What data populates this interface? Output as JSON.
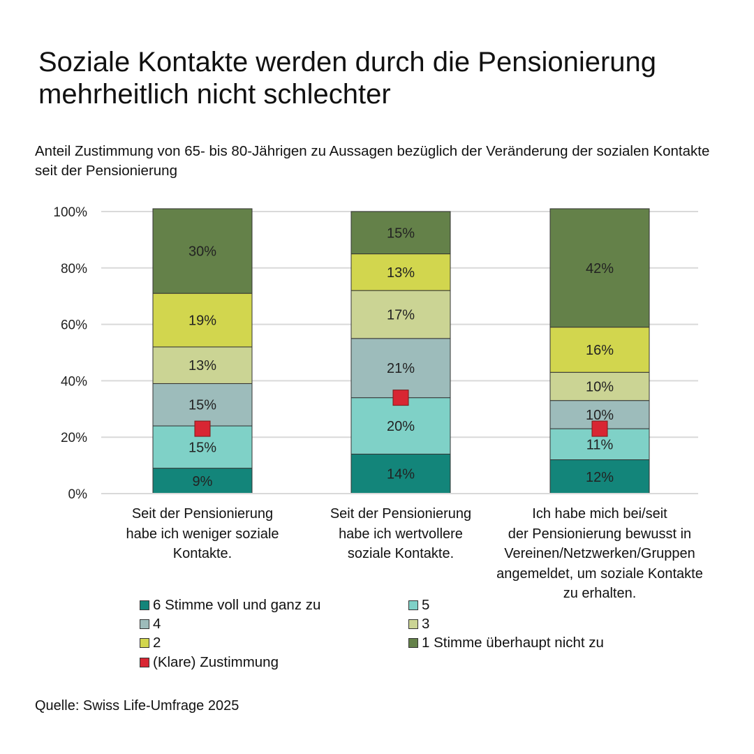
{
  "title": "Soziale Kontakte werden durch die Pensionierung mehrheitlich nicht schlechter",
  "subtitle": "Anteil Zustimmung von 65- bis 80-Jährigen zu Aussagen bezüglich der Veränderung der sozialen Kontakte seit der Pensionierung",
  "source": "Quelle: Swiss Life-Umfrage 2025",
  "chart_data": {
    "type": "bar",
    "stacked": true,
    "ylim": [
      0,
      100
    ],
    "yticks": [
      "0%",
      "20%",
      "40%",
      "60%",
      "80%",
      "100%"
    ],
    "categories": [
      "Seit der Pensionierung habe ich weniger soziale Kontakte.",
      "Seit der Pensionierung habe ich wertvollere soziale Kontakte.",
      "Ich habe mich bei/seit der Pensionierung bewusst in Vereinen/Netzwerken/Gruppen angemeldet, um soziale Kontakte zu erhalten."
    ],
    "series": [
      {
        "name": "6 Stimme voll und ganz zu",
        "color": "#13857a",
        "values": [
          9,
          14,
          12
        ],
        "labels": [
          "9%",
          "14%",
          "12%"
        ]
      },
      {
        "name": "5",
        "color": "#7fd1c7",
        "values": [
          15,
          20,
          11
        ],
        "labels": [
          "15%",
          "20%",
          "11%"
        ]
      },
      {
        "name": "4",
        "color": "#9dbcbb",
        "values": [
          15,
          21,
          10
        ],
        "labels": [
          "15%",
          "21%",
          "10%"
        ]
      },
      {
        "name": "3",
        "color": "#cbd494",
        "values": [
          13,
          17,
          10
        ],
        "labels": [
          "13%",
          "17%",
          "10%"
        ]
      },
      {
        "name": "2",
        "color": "#d2d64e",
        "values": [
          19,
          13,
          16
        ],
        "labels": [
          "19%",
          "13%",
          "16%"
        ]
      },
      {
        "name": "1 Stimme überhaupt nicht zu",
        "color": "#648149",
        "values": [
          30,
          15,
          42
        ],
        "labels": [
          "30%",
          "15%",
          "42%"
        ]
      }
    ],
    "markers": {
      "name": "(Klare) Zustimmung",
      "color": "#d82633",
      "values": [
        23,
        34,
        23
      ]
    }
  },
  "category_lines": [
    [
      "Seit der Pensionierung",
      "habe ich weniger soziale",
      "Kontakte."
    ],
    [
      "Seit der Pensionierung",
      "habe ich wertvollere",
      "soziale Kontakte."
    ],
    [
      "Ich habe mich bei/seit",
      "der Pensionierung bewusst in",
      "Vereinen/Netzwerken/Gruppen",
      "angemeldet, um soziale Kontakte",
      "zu erhalten."
    ]
  ]
}
